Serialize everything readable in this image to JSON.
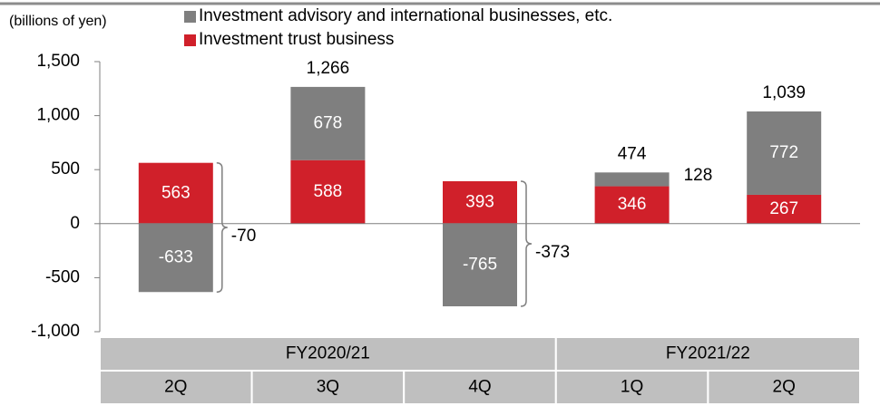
{
  "chart_data": {
    "type": "stacked_bar",
    "unit_label": "(billions of yen)",
    "categories": [
      "2Q",
      "3Q",
      "4Q",
      "1Q",
      "2Q"
    ],
    "group_labels": [
      "FY2020/21",
      "FY2020/21",
      "FY2020/21",
      "FY2021/22",
      "FY2021/22"
    ],
    "series": [
      {
        "name": "Investment advisory and international businesses, etc.",
        "color": "#7f7f7f",
        "values": [
          -633,
          678,
          -765,
          128,
          772
        ]
      },
      {
        "name": "Investment trust business",
        "color": "#d0202a",
        "values": [
          563,
          588,
          393,
          346,
          267
        ]
      }
    ],
    "totals": {
      "values": [
        -70,
        1266,
        -373,
        474,
        1039
      ],
      "value_labels": [
        "-70",
        "1,266",
        "-373",
        "474",
        "1,039"
      ]
    },
    "ylim": [
      -1000,
      1500
    ],
    "yticks": [
      {
        "value": 1500,
        "label": "1,500"
      },
      {
        "value": 1000,
        "label": "1,000"
      },
      500,
      0,
      -500,
      {
        "value": -1000,
        "label": "-1,000"
      }
    ]
  }
}
